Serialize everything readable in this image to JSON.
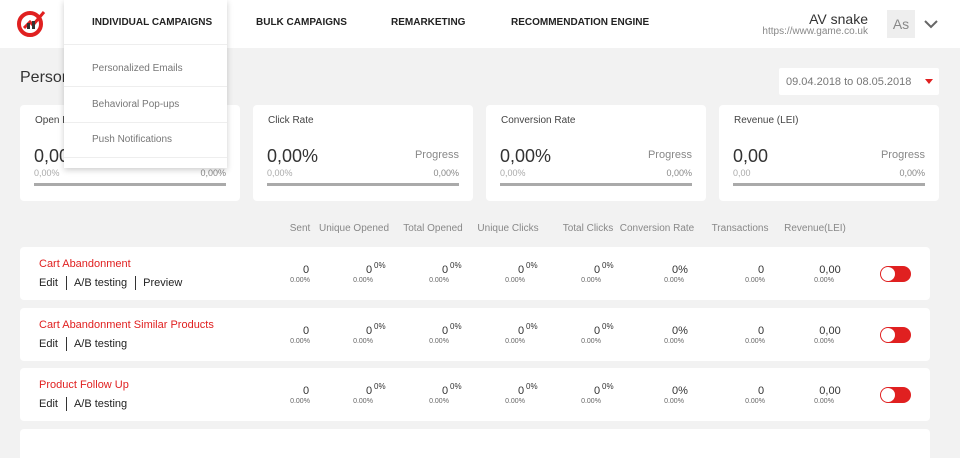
{
  "header": {
    "nav": [
      "INDIVIDUAL CAMPAIGNS",
      "BULK CAMPAIGNS",
      "REMARKETING",
      "RECOMMENDATION ENGINE"
    ],
    "dropdown": [
      "Personalized Emails",
      "Behavioral Pop-ups",
      "Push Notifications"
    ],
    "user": {
      "name": "AV snake",
      "url": "https://www.game.co.uk",
      "avatar": "As"
    }
  },
  "page": {
    "title": "Person",
    "date_range": "09.04.2018 to 08.05.2018"
  },
  "cards": [
    {
      "label": "Open R",
      "value": "0,00",
      "progress_label": null,
      "sub": "0,00%",
      "progress_value": "0,00%"
    },
    {
      "label": "Click Rate",
      "value": "0,00%",
      "progress_label": "Progress",
      "sub": "0,00%",
      "progress_value": "0,00%"
    },
    {
      "label": "Conversion Rate",
      "value": "0,00%",
      "progress_label": "Progress",
      "sub": "0,00%",
      "progress_value": "0,00%"
    },
    {
      "label": "Revenue (LEI)",
      "value": "0,00",
      "progress_label": "Progress",
      "sub": "0,00",
      "progress_value": "0,00%"
    }
  ],
  "table": {
    "headers": [
      "Sent",
      "Unique Opened",
      "Total Opened",
      "Unique Clicks",
      "Total Clicks",
      "Conversion Rate",
      "Transactions",
      "Revenue(LEI)"
    ],
    "rows": [
      {
        "name": "Cart Abandonment",
        "actions": [
          "Edit",
          "A/B testing",
          "Preview"
        ],
        "cells": [
          {
            "value": "0",
            "sub": "0.00%"
          },
          {
            "value": "0",
            "pct": "0%",
            "sub": "0.00%"
          },
          {
            "value": "0",
            "pct": "0%",
            "sub": "0.00%"
          },
          {
            "value": "0",
            "pct": "0%",
            "sub": "0.00%"
          },
          {
            "value": "0",
            "pct": "0%",
            "sub": "0.00%"
          },
          {
            "value": "0%",
            "sub": "0.00%"
          },
          {
            "value": "0",
            "sub": "0.00%"
          },
          {
            "value": "0,00",
            "sub": "0.00%"
          }
        ]
      },
      {
        "name": "Cart Abandonment Similar Products",
        "actions": [
          "Edit",
          "A/B testing"
        ],
        "cells": [
          {
            "value": "0",
            "sub": "0.00%"
          },
          {
            "value": "0",
            "pct": "0%",
            "sub": "0.00%"
          },
          {
            "value": "0",
            "pct": "0%",
            "sub": "0.00%"
          },
          {
            "value": "0",
            "pct": "0%",
            "sub": "0.00%"
          },
          {
            "value": "0",
            "pct": "0%",
            "sub": "0.00%"
          },
          {
            "value": "0%",
            "sub": "0.00%"
          },
          {
            "value": "0",
            "sub": "0.00%"
          },
          {
            "value": "0,00",
            "sub": "0.00%"
          }
        ]
      },
      {
        "name": "Product Follow Up",
        "actions": [
          "Edit",
          "A/B testing"
        ],
        "cells": [
          {
            "value": "0",
            "sub": "0.00%"
          },
          {
            "value": "0",
            "pct": "0%",
            "sub": "0.00%"
          },
          {
            "value": "0",
            "pct": "0%",
            "sub": "0.00%"
          },
          {
            "value": "0",
            "pct": "0%",
            "sub": "0.00%"
          },
          {
            "value": "0",
            "pct": "0%",
            "sub": "0.00%"
          },
          {
            "value": "0%",
            "sub": "0.00%"
          },
          {
            "value": "0",
            "sub": "0.00%"
          },
          {
            "value": "0,00",
            "sub": "0.00%"
          }
        ]
      }
    ]
  }
}
